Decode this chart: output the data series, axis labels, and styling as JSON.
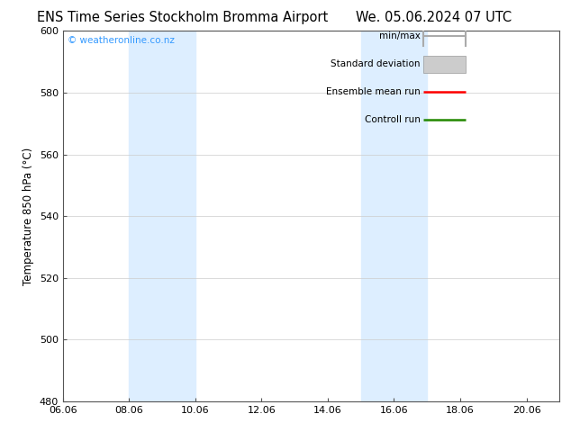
{
  "title_left": "ENS Time Series Stockholm Bromma Airport",
  "title_right": "We. 05.06.2024 07 UTC",
  "ylabel": "Temperature 850 hPa (°C)",
  "ylim": [
    480,
    600
  ],
  "yticks": [
    480,
    500,
    520,
    540,
    560,
    580,
    600
  ],
  "xlim": [
    6,
    21
  ],
  "xtick_positions": [
    6,
    8,
    10,
    12,
    14,
    16,
    18,
    20
  ],
  "xtick_labels": [
    "06.06",
    "08.06",
    "10.06",
    "12.06",
    "14.06",
    "16.06",
    "18.06",
    "20.06"
  ],
  "shaded_bands": [
    {
      "x_start": 8.0,
      "x_end": 10.0
    },
    {
      "x_start": 15.0,
      "x_end": 17.0
    }
  ],
  "shaded_color": "#ddeeff",
  "legend_items": [
    {
      "label": "min/max",
      "color": "#aaaaaa",
      "type": "hline_capped"
    },
    {
      "label": "Standard deviation",
      "color": "#cccccc",
      "type": "rect"
    },
    {
      "label": "Ensemble mean run",
      "color": "#ff0000",
      "type": "line"
    },
    {
      "label": "Controll run",
      "color": "#228800",
      "type": "line"
    }
  ],
  "watermark": "© weatheronline.co.nz",
  "watermark_color": "#3399ff",
  "background_color": "#ffffff",
  "plot_bg_color": "#ffffff",
  "grid_color": "#cccccc",
  "title_fontsize": 10.5,
  "axis_fontsize": 8.5,
  "tick_fontsize": 8,
  "legend_fontsize": 7.5
}
